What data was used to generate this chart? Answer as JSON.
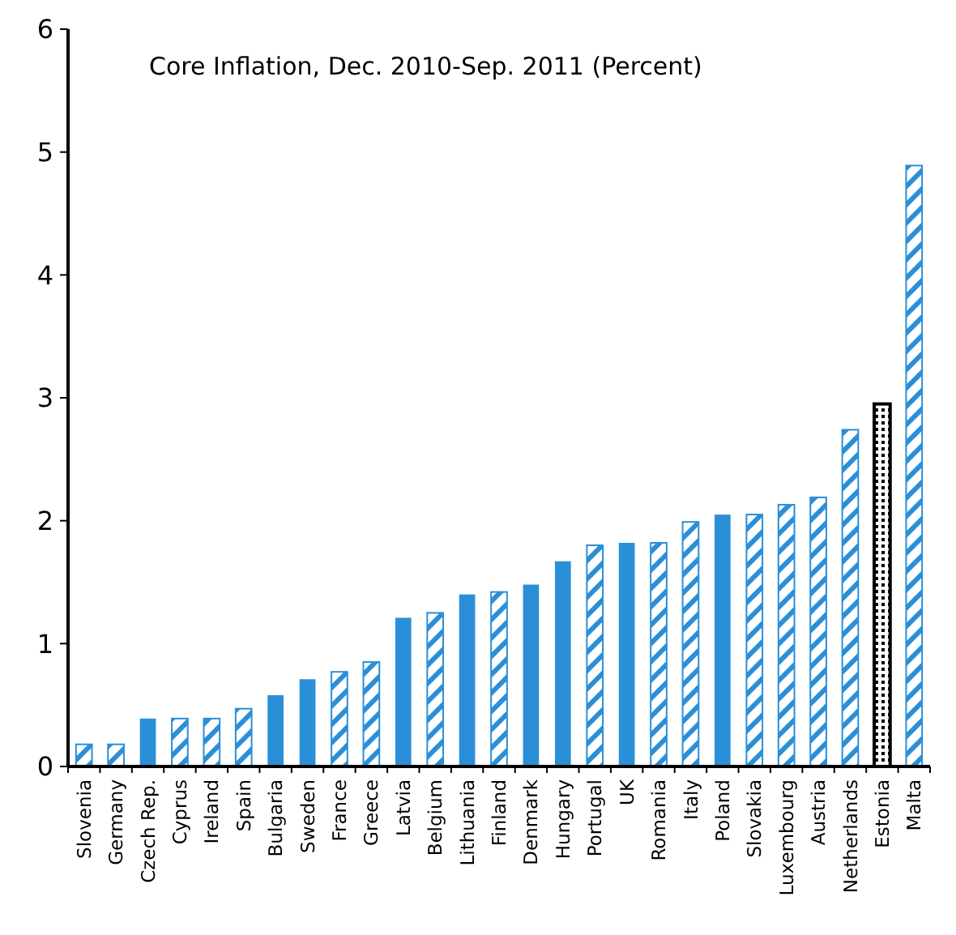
{
  "chart_data": {
    "type": "bar",
    "title": "Core Inflation, Dec. 2010-Sep. 2011 (Percent)",
    "categories": [
      "Slovenia",
      "Germany",
      "Czech Rep.",
      "Cyprus",
      "Ireland",
      "Spain",
      "Bulgaria",
      "Sweden",
      "France",
      "Greece",
      "Latvia",
      "Belgium",
      "Lithuania",
      "Finland",
      "Denmark",
      "Hungary",
      "Portugal",
      "UK",
      "Romania",
      "Italy",
      "Poland",
      "Slovakia",
      "Luxembourg",
      "Austria",
      "Netherlands",
      "Estonia",
      "Malta"
    ],
    "series": [
      {
        "color": "#2b8fd8",
        "values": [
          null,
          null,
          0.39,
          null,
          null,
          null,
          0.58,
          0.71,
          null,
          null,
          1.21,
          null,
          1.4,
          null,
          1.48,
          1.67,
          null,
          1.82,
          null,
          null,
          2.05,
          null,
          null,
          null,
          null,
          null,
          null
        ]
      },
      {
        "color": "#2b8fd8",
        "values": [
          0.18,
          0.18,
          null,
          0.39,
          0.39,
          0.47,
          null,
          null,
          0.77,
          0.85,
          null,
          1.25,
          null,
          1.42,
          null,
          null,
          1.8,
          null,
          1.82,
          1.99,
          null,
          2.05,
          2.13,
          2.19,
          2.74,
          null,
          4.89
        ]
      },
      {
        "color": "#000000",
        "values": [
          null,
          null,
          null,
          null,
          null,
          null,
          null,
          null,
          null,
          null,
          null,
          null,
          null,
          null,
          null,
          null,
          null,
          null,
          null,
          null,
          null,
          null,
          null,
          null,
          null,
          2.95,
          null
        ]
      }
    ],
    "ylim": [
      0,
      6
    ],
    "yticks": [
      0,
      1,
      2,
      3,
      4,
      5,
      6
    ],
    "grid": false
  }
}
